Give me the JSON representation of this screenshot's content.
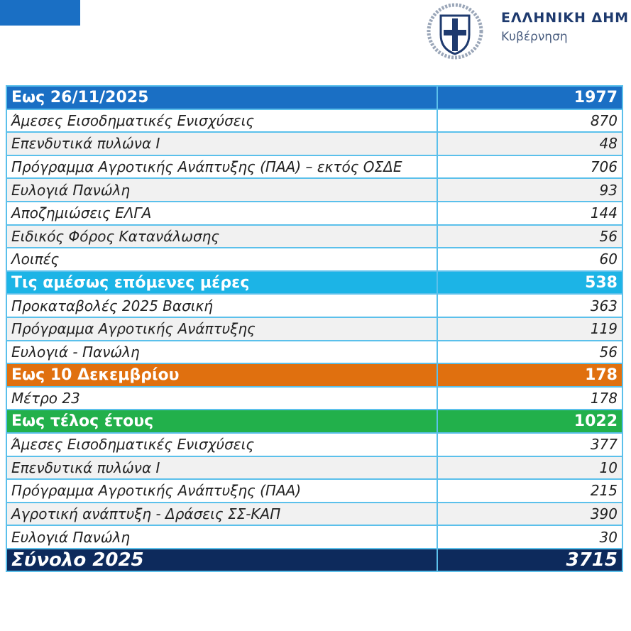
{
  "header": {
    "title": "ΕΛΛΗΝΙΚΗ ΔΗΜ",
    "subtitle": "Κυβέρνηση"
  },
  "table": {
    "sections": [
      {
        "title": "Εως 26/11/2025",
        "total": 1977,
        "items": [
          {
            "label": "Άμεσες Εισοδηματικές Ενισχύσεις",
            "value": 870
          },
          {
            "label": "Επενδυτικά πυλώνα Ι",
            "value": 48
          },
          {
            "label": "Πρόγραμμα Αγροτικής Ανάπτυξης (ΠΑΑ) – εκτός ΟΣΔΕ",
            "value": 706
          },
          {
            "label": "Ευλογιά Πανώλη",
            "value": 93
          },
          {
            "label": "Αποζημιώσεις ΕΛΓΑ",
            "value": 144
          },
          {
            "label": "Ειδικός Φόρος Κατανάλωσης",
            "value": 56
          },
          {
            "label": "Λοιπές",
            "value": 60
          }
        ]
      },
      {
        "title": "Τις αμέσως επόμενες μέρες",
        "total": 538,
        "items": [
          {
            "label": "Προκαταβολές 2025 Βασική",
            "value": 363
          },
          {
            "label": "Πρόγραμμα Αγροτικής Ανάπτυξης",
            "value": 119
          },
          {
            "label": "Ευλογιά - Πανώλη",
            "value": 56
          }
        ]
      },
      {
        "title": "Εως 10 Δεκεμβρίου",
        "total": 178,
        "items": [
          {
            "label": "Μέτρο 23",
            "value": 178
          }
        ]
      },
      {
        "title": "Εως τέλος έτους",
        "total": 1022,
        "items": [
          {
            "label": "Άμεσες Εισοδηματικές Ενισχύσεις",
            "value": 377
          },
          {
            "label": "Επενδυτικά πυλώνα Ι",
            "value": 10
          },
          {
            "label": "Πρόγραμμα Αγροτικής Ανάπτυξης (ΠΑΑ)",
            "value": 215
          },
          {
            "label": "Αγροτική ανάπτυξη - Δράσεις ΣΣ-ΚΑΠ",
            "value": 390
          },
          {
            "label": "Ευλογιά Πανώλη",
            "value": 30
          }
        ]
      }
    ],
    "grand_total": {
      "label": "Σύνολο 2025",
      "value": 3715
    }
  }
}
